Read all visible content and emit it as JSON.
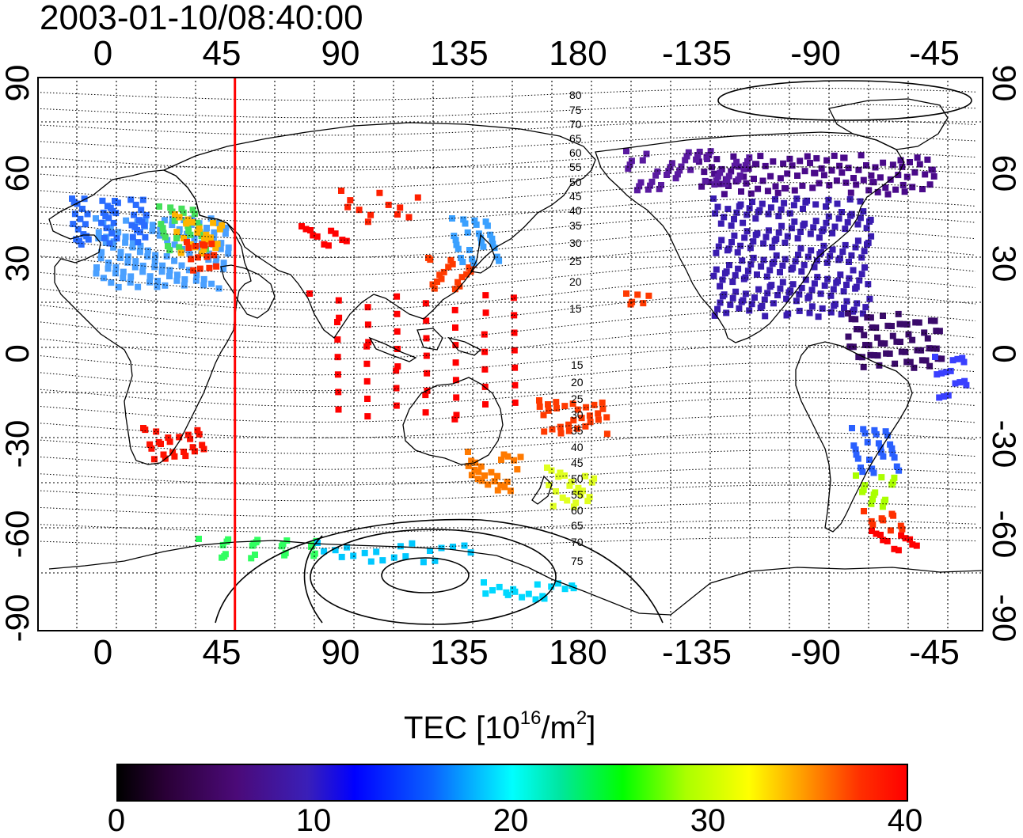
{
  "timestamp": "2003-01-10/08:40:00",
  "top_lon_labels": [
    "0",
    "45",
    "90",
    "135",
    "180",
    "-135",
    "-90",
    "-45"
  ],
  "bottom_lon_labels": [
    "0",
    "45",
    "90",
    "135",
    "180",
    "-135",
    "-90",
    "-45"
  ],
  "left_lat_labels": [
    "90",
    "60",
    "30",
    "0",
    "-30",
    "-60",
    "-90"
  ],
  "right_lat_labels": [
    "90",
    "60",
    "30",
    "0",
    "-30",
    "-60",
    "-90"
  ],
  "contour_labels_north": [
    "80",
    "75",
    "70",
    "65",
    "60",
    "55",
    "50",
    "45",
    "40",
    "35",
    "30",
    "25",
    "20",
    "15"
  ],
  "contour_labels_south": [
    "15",
    "20",
    "25",
    "30",
    "35",
    "40",
    "45",
    "50",
    "55",
    "60",
    "65",
    "70",
    "75"
  ],
  "colorbar": {
    "title_main": "TEC  [10",
    "title_sup1": "16",
    "title_mid": "/m",
    "title_sup2": "2",
    "title_end": "]",
    "ticks": [
      "0",
      "10",
      "20",
      "30",
      "40"
    ],
    "range": [
      0,
      40
    ]
  },
  "marker_line": {
    "longitude": 50,
    "color": "#ff0000"
  },
  "colors": {
    "frame": "#000000",
    "grid": "#000000",
    "marker": "#ff0000"
  }
}
